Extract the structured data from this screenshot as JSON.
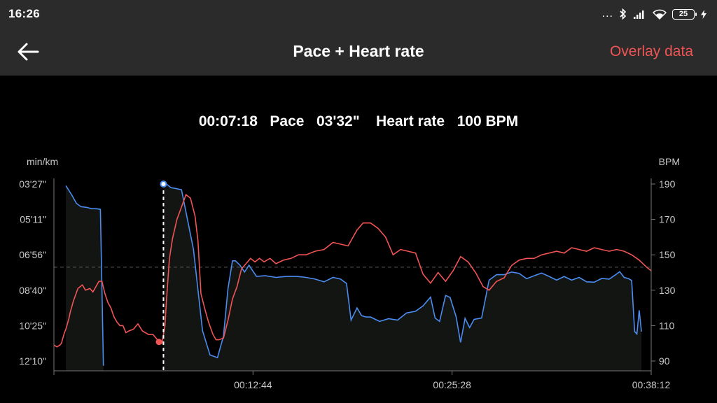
{
  "status_bar": {
    "time": "16:26",
    "dots": "...",
    "battery_level": "25",
    "icons": [
      "bluetooth-icon",
      "signal-icon",
      "wifi-icon",
      "battery-icon",
      "charging-icon"
    ]
  },
  "app_bar": {
    "back_icon": "back-arrow-icon",
    "title": "Pace + Heart rate",
    "overlay_label": "Overlay data"
  },
  "readout": {
    "time": "00:07:18",
    "pace_label": "Pace",
    "pace_value": "03'32\"",
    "hr_label": "Heart rate",
    "hr_value": "100 BPM"
  },
  "colors": {
    "pace_line": "#4a8cf0",
    "heart_rate_line": "#f05454",
    "background": "#000000",
    "bar": "#2b2b2b",
    "accent": "#f05454"
  },
  "chart_data": {
    "type": "line",
    "left_axis": {
      "label": "min/km",
      "ticks": [
        "03'27\"",
        "05'11\"",
        "06'56\"",
        "08'40\"",
        "10'25\"",
        "12'10\""
      ],
      "range_seconds": [
        207,
        730
      ]
    },
    "right_axis": {
      "label": "BPM",
      "ticks": [
        190,
        170,
        150,
        130,
        110,
        90
      ],
      "range": [
        90,
        190
      ]
    },
    "x_axis": {
      "ticks": [
        "00:12:44",
        "00:25:28",
        "00:38:12"
      ],
      "range_minutes": [
        0,
        39.8
      ]
    },
    "cursor": {
      "time_minutes": 7.3,
      "pace": "03'32\"",
      "heart_rate": 100
    },
    "average_line_bpm": 143,
    "series": [
      {
        "name": "Pace",
        "axis": "left",
        "unit": "seconds per km",
        "x": [
          0.8,
          1.2,
          1.5,
          1.8,
          2.2,
          2.5,
          2.8,
          3.0,
          3.1,
          3.3,
          7.3,
          7.5,
          7.8,
          8.1,
          8.5,
          9.3,
          9.9,
          10.4,
          10.9,
          11.3,
          11.6,
          11.9,
          12.1,
          12.4,
          12.7,
          13.0,
          13.5,
          14.1,
          14.8,
          15.5,
          16.2,
          16.8,
          17.4,
          18.0,
          18.6,
          19.1,
          19.5,
          19.8,
          20.2,
          20.5,
          20.8,
          21.1,
          21.7,
          22.3,
          22.9,
          23.5,
          24.1,
          24.6,
          25.1,
          25.4,
          25.7,
          26.1,
          26.4,
          26.8,
          27.1,
          27.4,
          27.7,
          28.0,
          28.5,
          29.0,
          29.5,
          30.0,
          30.5,
          31.0,
          31.5,
          32.0,
          32.5,
          33.0,
          33.5,
          34.0,
          34.5,
          35.0,
          35.5,
          36.0,
          36.5,
          37.0,
          37.4,
          37.7,
          38.0,
          38.3,
          38.5,
          38.7,
          38.85,
          39.0,
          39.15
        ],
        "y": [
          212,
          240,
          264,
          274,
          276,
          280,
          280,
          281,
          282,
          744,
          207,
          207,
          218,
          220,
          224,
          400,
          640,
          712,
          720,
          656,
          516,
          434,
          434,
          447,
          467,
          447,
          480,
          478,
          483,
          480,
          480,
          483,
          488,
          496,
          483,
          488,
          501,
          609,
          573,
          596,
          600,
          600,
          613,
          605,
          609,
          588,
          583,
          567,
          541,
          603,
          613,
          536,
          542,
          599,
          675,
          604,
          631,
          607,
          603,
          491,
          475,
          475,
          467,
          471,
          487,
          478,
          470,
          480,
          491,
          480,
          491,
          483,
          496,
          497,
          486,
          488,
          476,
          466,
          483,
          487,
          492,
          643,
          650,
          580,
          643
        ]
      },
      {
        "name": "Heart rate",
        "axis": "right",
        "unit": "BPM",
        "x": [
          0.0,
          0.2,
          0.4,
          0.5,
          0.7,
          0.8,
          1.0,
          1.1,
          1.3,
          1.6,
          1.9,
          2.1,
          2.4,
          2.6,
          2.8,
          3.0,
          3.2,
          3.4,
          3.6,
          3.8,
          4.0,
          4.2,
          4.4,
          4.6,
          4.8,
          5.0,
          5.3,
          5.6,
          5.9,
          6.3,
          6.6,
          6.8,
          7.0,
          7.2,
          7.4,
          7.5,
          7.7,
          7.9,
          8.2,
          8.5,
          8.8,
          9.1,
          9.4,
          9.6,
          9.8,
          10.1,
          10.3,
          10.6,
          10.8,
          11.0,
          11.3,
          11.6,
          11.9,
          12.2,
          12.5,
          12.8,
          13.1,
          13.4,
          13.7,
          14.0,
          14.4,
          14.8,
          15.3,
          15.8,
          16.3,
          16.8,
          17.4,
          18.0,
          18.6,
          19.1,
          19.6,
          20.2,
          20.6,
          21.1,
          21.6,
          22.1,
          22.6,
          23.1,
          23.6,
          24.1,
          24.6,
          25.1,
          25.6,
          26.1,
          26.6,
          27.1,
          27.6,
          28.1,
          28.6,
          29.0,
          29.5,
          30.0,
          30.5,
          31.0,
          31.5,
          32.0,
          32.5,
          33.0,
          33.5,
          34.0,
          34.5,
          35.0,
          35.5,
          36.0,
          36.5,
          37.0,
          37.5,
          38.0,
          38.5,
          39.0,
          39.5,
          39.8
        ],
        "y": [
          99,
          98,
          99,
          100,
          106,
          108,
          114,
          118,
          124,
          131,
          133,
          130,
          131,
          129,
          132,
          135,
          135,
          128,
          123,
          120,
          115,
          112,
          110,
          110,
          106,
          107,
          108,
          111,
          107,
          105,
          105,
          103,
          101,
          100,
          110,
          124,
          148,
          159,
          170,
          177,
          184,
          182,
          172,
          158,
          128,
          118,
          112,
          105,
          102,
          102,
          103,
          113,
          125,
          132,
          142,
          145,
          148,
          146,
          148,
          146,
          148,
          145,
          147,
          148,
          150,
          150,
          152,
          153,
          157,
          156,
          155,
          164,
          168,
          168,
          165,
          160,
          150,
          153,
          152,
          151,
          139,
          134,
          140,
          135,
          141,
          149,
          146,
          140,
          132,
          130,
          135,
          137,
          144,
          147,
          148,
          148,
          150,
          151,
          152,
          151,
          154,
          153,
          152,
          154,
          153,
          152,
          153,
          152,
          150,
          147,
          143,
          141
        ]
      }
    ]
  }
}
